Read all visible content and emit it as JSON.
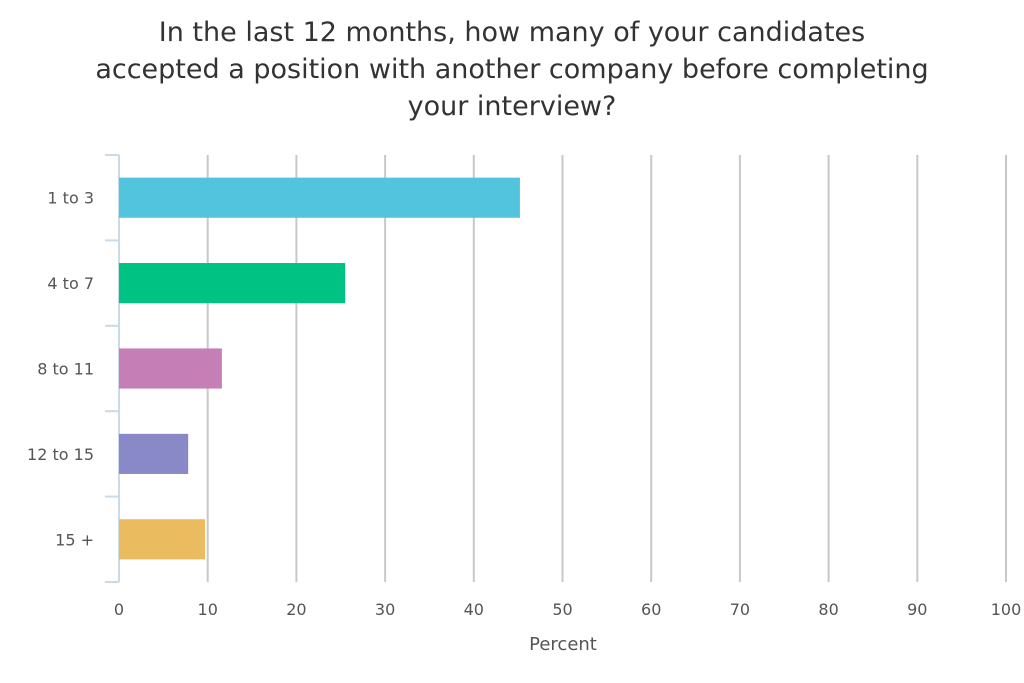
{
  "chart_data": {
    "type": "bar",
    "orientation": "horizontal",
    "title_lines": [
      "In the last 12 months, how many of your candidates",
      "accepted a position with another company before completing",
      "your interview?"
    ],
    "categories": [
      "1 to 3",
      "4 to 7",
      "8 to 11",
      "12 to 15",
      "15 +"
    ],
    "values": [
      45.2,
      25.5,
      11.6,
      7.8,
      9.7
    ],
    "colors": [
      "#52c4de",
      "#00c283",
      "#c57eb6",
      "#8989c7",
      "#eabb5f"
    ],
    "xlabel": "Percent",
    "xlim": [
      0,
      100
    ],
    "xticks": [
      "0",
      "10",
      "20",
      "30",
      "40",
      "50",
      "60",
      "70",
      "80",
      "90",
      "100"
    ],
    "grid": true,
    "legend": false
  }
}
